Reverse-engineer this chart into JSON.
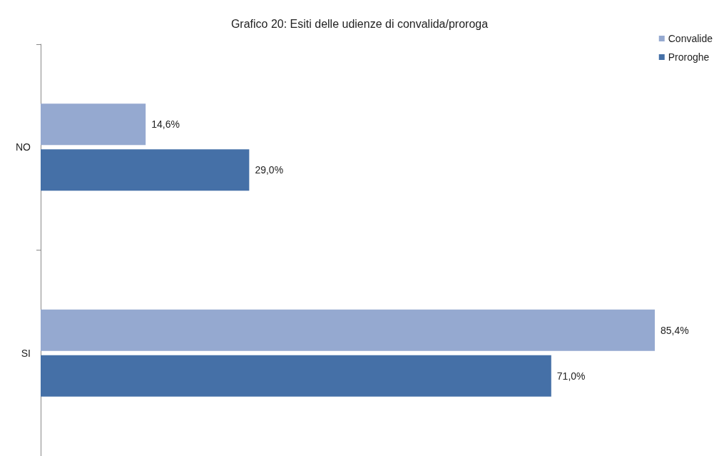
{
  "chart_data": {
    "type": "bar",
    "orientation": "horizontal",
    "title": "Grafico 20: Esiti delle udienze di convalida/proroga",
    "categories": [
      "NO",
      "SI"
    ],
    "series": [
      {
        "name": "Convalide",
        "color": "#95a9d0",
        "values": [
          14.6,
          85.4
        ],
        "value_labels": [
          "14,6%",
          "85,4%"
        ]
      },
      {
        "name": "Proroghe",
        "color": "#4570a7",
        "values": [
          29.0,
          71.0
        ],
        "value_labels": [
          "29,0%",
          "71,0%"
        ]
      }
    ],
    "legend": "top right"
  }
}
